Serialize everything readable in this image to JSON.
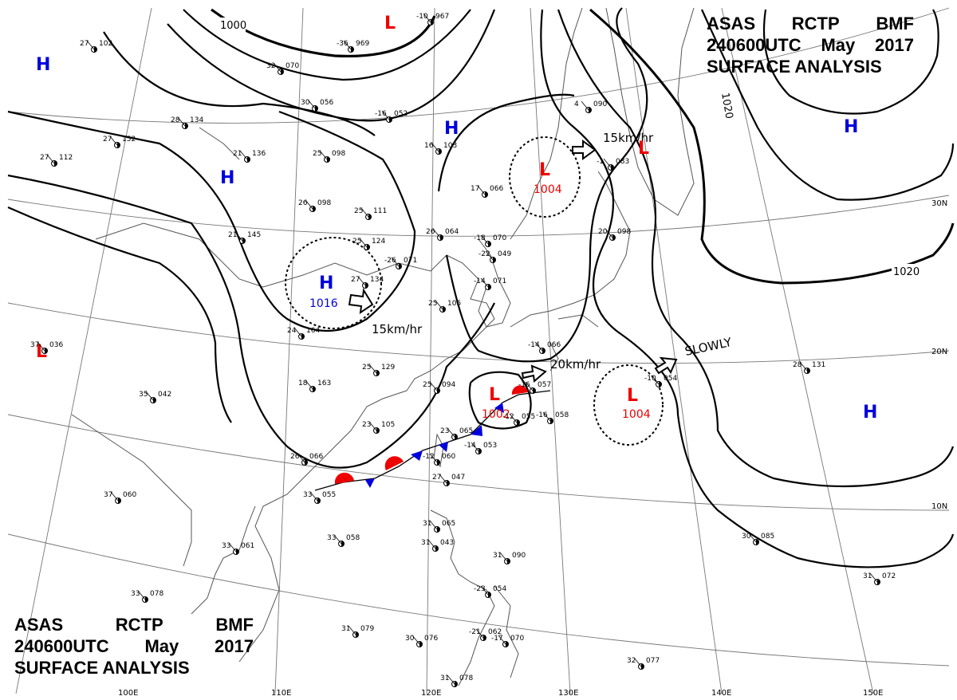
{
  "header_top": {
    "line1": [
      "ASAS",
      "RCTP",
      "BMF"
    ],
    "line2": [
      "240600UTC",
      "May",
      "2017"
    ],
    "line3": "SURFACE ANALYSIS"
  },
  "header_bottom": {
    "line1": [
      "ASAS",
      "RCTP",
      "BMF"
    ],
    "line2": [
      "240600UTC",
      "May",
      "2017"
    ],
    "line3": "SURFACE ANALYSIS"
  },
  "colors": {
    "high": "#0000dd",
    "low": "#ee0000",
    "front_cold": "#0000dd",
    "front_warm": "#ee0000",
    "isobar": "#000000",
    "coast": "#555555",
    "grid": "#777777"
  },
  "isobar_labels": [
    "1000",
    "1020",
    "1020"
  ],
  "pressure_systems": [
    {
      "type": "H",
      "letter": "H"
    },
    {
      "type": "H",
      "letter": "H"
    },
    {
      "type": "H",
      "letter": "H",
      "value": "1016"
    },
    {
      "type": "H",
      "letter": "H"
    },
    {
      "type": "H",
      "letter": "H"
    },
    {
      "type": "H",
      "letter": "H"
    },
    {
      "type": "L",
      "letter": "L"
    },
    {
      "type": "L",
      "letter": "L",
      "value": "1004"
    },
    {
      "type": "L",
      "letter": "L"
    },
    {
      "type": "L",
      "letter": "L",
      "value": "1002"
    },
    {
      "type": "L",
      "letter": "L",
      "value": "1004"
    },
    {
      "type": "L",
      "letter": "L"
    }
  ],
  "movement_labels": [
    "15km/hr",
    "15km/hr",
    "20km/hr",
    "SLOWLY"
  ],
  "lat_labels": [
    "30N",
    "20N",
    "10N"
  ],
  "lon_labels": [
    "100E",
    "110E",
    "120E",
    "130E",
    "140E",
    "150E"
  ],
  "stations": [
    {
      "t": "102",
      "t2": "27"
    },
    {
      "t": "967",
      "t2": "-10"
    },
    {
      "t": "969",
      "t2": "-36"
    },
    {
      "t": "070",
      "t2": "32"
    },
    {
      "t": "056",
      "t2": "30"
    },
    {
      "t": "052",
      "t2": "-16"
    },
    {
      "t": "134",
      "t2": "28"
    },
    {
      "t": "152",
      "t2": "27"
    },
    {
      "t": "112",
      "t2": "27"
    },
    {
      "t": "136",
      "t2": "21"
    },
    {
      "t": "098",
      "t2": "25"
    },
    {
      "t": "103",
      "t2": "16"
    },
    {
      "t": "098",
      "t2": "26"
    },
    {
      "t": "111",
      "t2": "25"
    },
    {
      "t": "064",
      "t2": "26"
    },
    {
      "t": "070",
      "t2": "-18"
    },
    {
      "t": "066",
      "t2": "17"
    },
    {
      "t": "145",
      "t2": "21"
    },
    {
      "t": "124",
      "t2": "25"
    },
    {
      "t": "071",
      "t2": "-26"
    },
    {
      "t": "049",
      "t2": "-22"
    },
    {
      "t": "134",
      "t2": "27"
    },
    {
      "t": "105",
      "t2": "25"
    },
    {
      "t": "071",
      "t2": "-14"
    },
    {
      "t": "083",
      "t2": "-1"
    },
    {
      "t": "090",
      "t2": "4"
    },
    {
      "t": "098",
      "t2": "20"
    },
    {
      "t": "036",
      "t2": "37"
    },
    {
      "t": "164",
      "t2": "24"
    },
    {
      "t": "129",
      "t2": "25"
    },
    {
      "t": "066",
      "t2": "-14"
    },
    {
      "t": "094",
      "t2": "25"
    },
    {
      "t": "163",
      "t2": "18"
    },
    {
      "t": "042",
      "t2": "35"
    },
    {
      "t": "057",
      "t2": "-16"
    },
    {
      "t": "054",
      "t2": "-10"
    },
    {
      "t": "131",
      "t2": "28"
    },
    {
      "t": "105",
      "t2": "23"
    },
    {
      "t": "065",
      "t2": "23"
    },
    {
      "t": "055",
      "t2": "-12"
    },
    {
      "t": "058",
      "t2": "-16"
    },
    {
      "t": "053",
      "t2": "-14"
    },
    {
      "t": "060",
      "t2": "-12"
    },
    {
      "t": "047",
      "t2": "27"
    },
    {
      "t": "066",
      "t2": "26"
    },
    {
      "t": "055",
      "t2": "33"
    },
    {
      "t": "060",
      "t2": "37"
    },
    {
      "t": "061",
      "t2": "33"
    },
    {
      "t": "058",
      "t2": "33"
    },
    {
      "t": "065",
      "t2": "31"
    },
    {
      "t": "043",
      "t2": "31"
    },
    {
      "t": "090",
      "t2": "31"
    },
    {
      "t": "085",
      "t2": "30"
    },
    {
      "t": "072",
      "t2": "31"
    },
    {
      "t": "054",
      "t2": "-23"
    },
    {
      "t": "078",
      "t2": "33"
    },
    {
      "t": "076",
      "t2": "30"
    },
    {
      "t": "062",
      "t2": "-21"
    },
    {
      "t": "078",
      "t2": "31"
    },
    {
      "t": "077",
      "t2": "32"
    },
    {
      "t": "079",
      "t2": "31"
    },
    {
      "t": "070",
      "t2": "-17"
    }
  ]
}
